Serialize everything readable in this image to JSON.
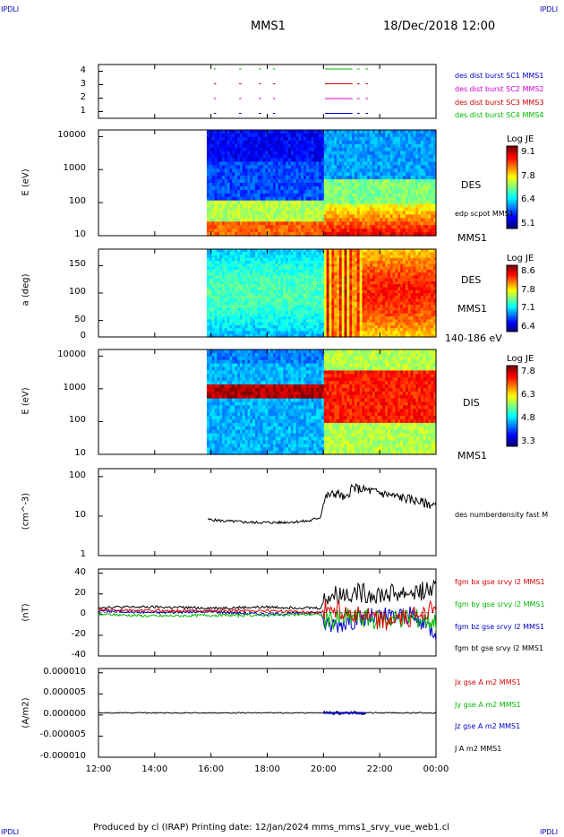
{
  "corners": {
    "tl": "IPDLI",
    "tr": "IPDLI",
    "bl": "IPDLI",
    "br": "IPDLI"
  },
  "header": {
    "spacecraft": "MMS1",
    "datetime": "18/Dec/2018 12:00"
  },
  "footer": "Produced by cl (IRAP)   Printing date: 12/Jan/2024   mms_mms1_srvy_vue_web1.cl",
  "x_ticks": [
    "12:00",
    "14:00",
    "16:00",
    "18:00",
    "20:00",
    "22:00",
    "00:00"
  ],
  "panels": {
    "burst": {
      "y_ticks": [
        "4",
        "3",
        "2",
        "1"
      ],
      "legend": [
        {
          "text": "des dist burst SC1 MMS1",
          "color": "#0000cc"
        },
        {
          "text": "des dist burst SC2 MMS2",
          "color": "#cc00cc"
        },
        {
          "text": "des dist burst SC3 MMS3",
          "color": "#cc0000"
        },
        {
          "text": "des dist burst SC4 MMS4",
          "color": "#00bb00"
        }
      ]
    },
    "des_energy": {
      "ylabel": "E (eV)",
      "y_ticks": [
        "10000",
        "1000",
        "100",
        "10"
      ],
      "cbar_title": "Log JE",
      "cbar_ticks": [
        "9.1",
        "7.8",
        "6.4",
        "5.1"
      ],
      "label": "DES",
      "label2": "edp scpot MMS1",
      "label3": "MMS1"
    },
    "des_pitch": {
      "ylabel": "a (deg)",
      "y_ticks": [
        "150",
        "100",
        "50",
        "0"
      ],
      "cbar_title": "Log JE",
      "cbar_ticks": [
        "8.6",
        "7.8",
        "7.1",
        "6.4"
      ],
      "label": "DES",
      "label2": "MMS1",
      "label3": "140-186 eV"
    },
    "dis_energy": {
      "ylabel": "E (eV)",
      "y_ticks": [
        "10000",
        "1000",
        "100",
        "10"
      ],
      "cbar_title": "Log JE",
      "cbar_ticks": [
        "7.8",
        "6.3",
        "4.8",
        "3.3"
      ],
      "label": "DIS",
      "label2": "MMS1"
    },
    "density": {
      "ylabel": "(cm^-3)",
      "y_ticks": [
        "100",
        "10",
        "1"
      ],
      "legend": "des numberdensity fast M"
    },
    "fgm": {
      "ylabel": "(nT)",
      "y_ticks": [
        "40",
        "20",
        "0",
        "-20",
        "-40"
      ],
      "legend": [
        {
          "text": "fgm bx gse srvy l2 MMS1",
          "color": "#dd0000"
        },
        {
          "text": "fgm by gse srvy l2 MMS1",
          "color": "#00bb00"
        },
        {
          "text": "fgm bz gse srvy l2 MMS1",
          "color": "#0000cc"
        },
        {
          "text": "fgm bt gse srvy l2 MMS1",
          "color": "#000000"
        }
      ]
    },
    "current": {
      "ylabel": "(A/m2)",
      "y_ticks": [
        "0.000010",
        "0.000005",
        "0.000000",
        "-0.000005",
        "-0.000010"
      ],
      "legend": [
        {
          "text": "Jx gse A m2 MMS1",
          "color": "#dd0000"
        },
        {
          "text": "Jy gse A m2 MMS1",
          "color": "#00bb00"
        },
        {
          "text": "Jz gse A m2 MMS1",
          "color": "#0000cc"
        },
        {
          "text": "J A m2 MMS1",
          "color": "#000000"
        }
      ]
    }
  },
  "chart_data": {
    "type": "line",
    "x_range_hours": [
      12,
      24
    ],
    "density_profile": {
      "x": [
        15.9,
        16.5,
        17.5,
        18.5,
        19.5,
        19.9,
        20.1,
        20.5,
        20.8,
        21.0,
        21.5,
        22.0,
        22.5,
        23.0,
        23.5,
        24.0
      ],
      "y": [
        7,
        6.5,
        6,
        6,
        6.5,
        8,
        25,
        30,
        20,
        40,
        35,
        30,
        25,
        22,
        18,
        15
      ]
    },
    "fgm_profile": {
      "x": [
        12,
        14,
        16,
        18,
        19.9,
        20.1,
        21,
        22,
        23,
        24
      ],
      "bt": [
        6,
        6,
        5,
        6,
        5,
        18,
        22,
        20,
        22,
        25
      ],
      "bx": [
        3,
        2,
        2,
        2,
        0,
        5,
        0,
        -10,
        -8,
        10
      ],
      "by": [
        -2,
        -4,
        -3,
        -3,
        -2,
        -10,
        -5,
        -8,
        -5,
        -10
      ],
      "bz": [
        2,
        0,
        1,
        -2,
        0,
        -15,
        -8,
        -5,
        -3,
        -20
      ]
    }
  }
}
